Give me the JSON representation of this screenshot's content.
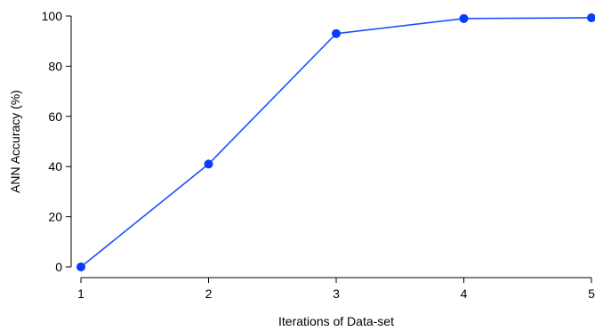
{
  "chart_data": {
    "type": "line",
    "title": "",
    "xlabel": "Iterations of Data-set",
    "ylabel": "ANN Accuracy (%)",
    "x": [
      1,
      2,
      3,
      4,
      5
    ],
    "series": [
      {
        "values": [
          0,
          41,
          93,
          99,
          99.3
        ]
      }
    ],
    "xlim": [
      1,
      5
    ],
    "ylim": [
      0,
      100
    ],
    "xticks": [
      1,
      2,
      3,
      4,
      5
    ],
    "yticks": [
      0,
      20,
      40,
      60,
      80,
      100
    ],
    "grid": false,
    "colors": {
      "line": "#1f4fff",
      "marker": "#0a3cff",
      "axis": "#000000"
    }
  }
}
